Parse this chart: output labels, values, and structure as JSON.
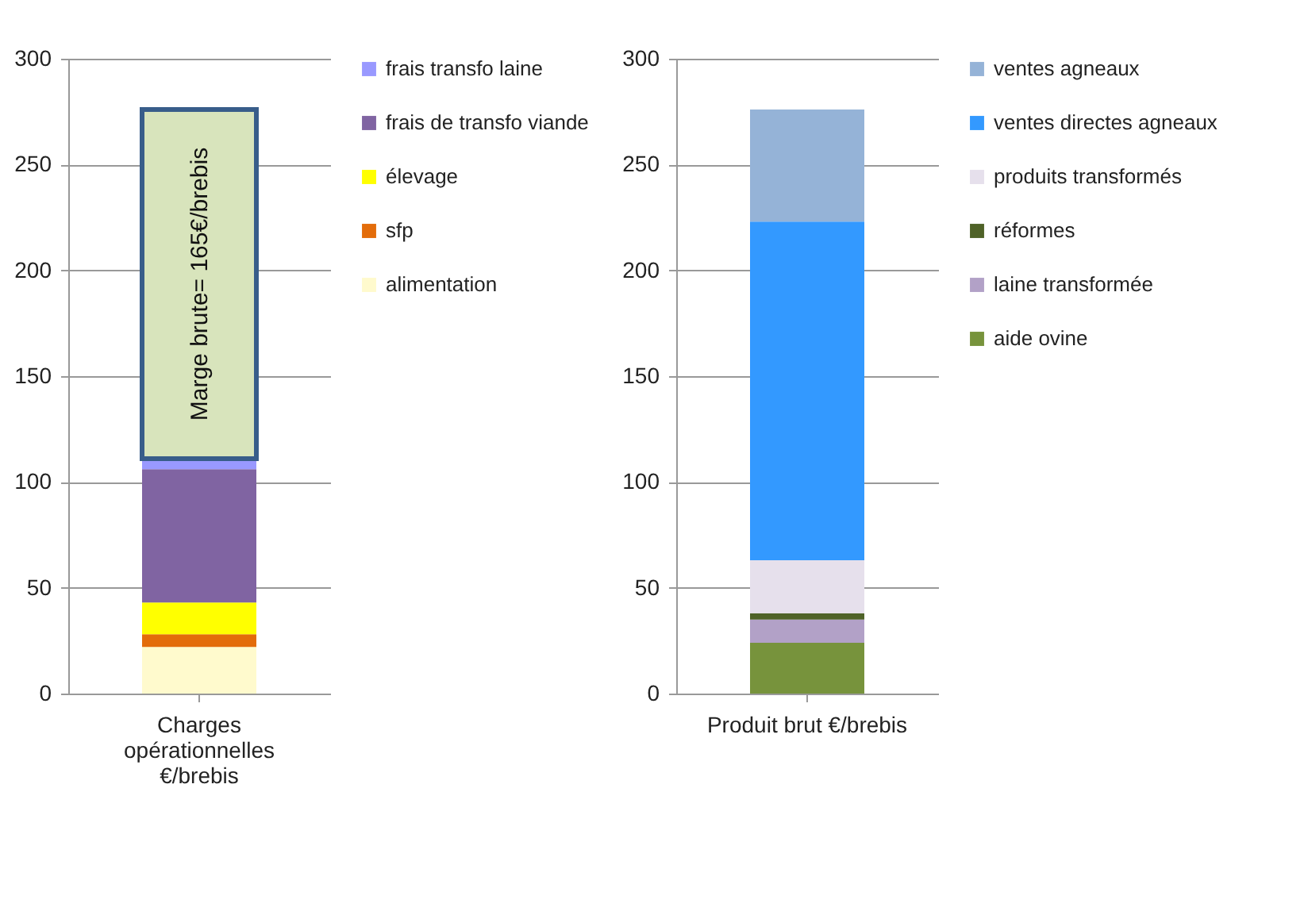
{
  "chart_data": [
    {
      "type": "bar",
      "stacked": true,
      "categories": [
        "Charges opérationnelles €/brebis"
      ],
      "ylim": [
        0,
        300
      ],
      "yticks": [
        0,
        50,
        100,
        150,
        200,
        250,
        300
      ],
      "grid": "y",
      "legend": "right",
      "series": [
        {
          "name": "alimentation",
          "color": "#fffacd",
          "values": [
            22
          ]
        },
        {
          "name": "sfp",
          "color": "#e36c0a",
          "values": [
            6
          ]
        },
        {
          "name": "élevage",
          "color": "#ffff00",
          "values": [
            15
          ]
        },
        {
          "name": "frais de transfo viande",
          "color": "#8064a2",
          "values": [
            63
          ]
        },
        {
          "name": "frais transfo laine",
          "color": "#9999ff",
          "values": [
            5
          ]
        },
        {
          "color": "#d8e4bc",
          "values": [
            165
          ]
        }
      ],
      "annotations": [
        "Marge brute= 165€/brebis"
      ]
    },
    {
      "type": "bar",
      "stacked": true,
      "categories": [
        "Produit brut €/brebis"
      ],
      "ylim": [
        0,
        300
      ],
      "yticks": [
        0,
        50,
        100,
        150,
        200,
        250,
        300
      ],
      "grid": "y",
      "legend": "right",
      "series": [
        {
          "name": "aide ovine",
          "color": "#77933c",
          "values": [
            24
          ]
        },
        {
          "name": "laine transformée",
          "color": "#b2a1c7",
          "values": [
            11
          ]
        },
        {
          "name": "réformes",
          "color": "#4f6228",
          "values": [
            3
          ]
        },
        {
          "name": "produits transformés",
          "color": "#e6e0ec",
          "values": [
            25
          ]
        },
        {
          "name": "ventes directes agneaux",
          "color": "#3399ff",
          "values": [
            160
          ]
        },
        {
          "name": "ventes  agneaux",
          "color": "#95b3d7",
          "values": [
            53
          ]
        }
      ]
    }
  ]
}
